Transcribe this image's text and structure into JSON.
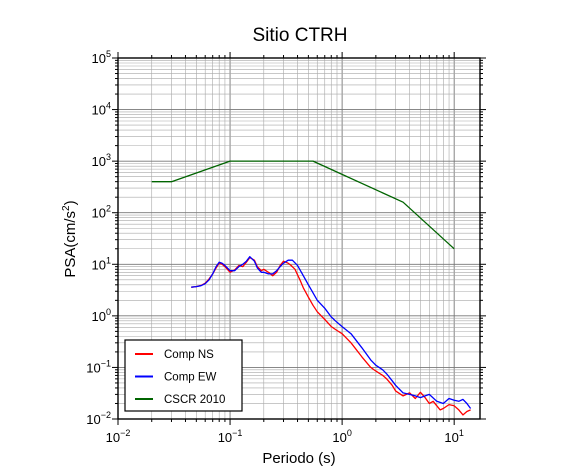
{
  "chart_data": {
    "type": "line",
    "title": "Sitio CTRH",
    "xlabel": "Periodo (s)",
    "ylabel_main": "PSA(cm/s",
    "ylabel_sup": "2",
    "ylabel_end": ")",
    "xscale": "log",
    "yscale": "log",
    "xlim": [
      0.01,
      17
    ],
    "ylim": [
      0.01,
      100000
    ],
    "grid": true,
    "legend_position": "bottom-left",
    "x_ticks": [
      {
        "base": "10",
        "exp": "−2"
      },
      {
        "base": "10",
        "exp": "−1"
      },
      {
        "base": "10",
        "exp": "0"
      },
      {
        "base": "10",
        "exp": "1"
      }
    ],
    "y_ticks": [
      {
        "base": "10",
        "exp": "−2"
      },
      {
        "base": "10",
        "exp": "−1"
      },
      {
        "base": "10",
        "exp": "0"
      },
      {
        "base": "10",
        "exp": "1"
      },
      {
        "base": "10",
        "exp": "2"
      },
      {
        "base": "10",
        "exp": "3"
      },
      {
        "base": "10",
        "exp": "4"
      },
      {
        "base": "10",
        "exp": "5"
      }
    ],
    "series": [
      {
        "name": "Comp NS",
        "color": "#ff0000",
        "x": [
          0.045,
          0.05,
          0.055,
          0.06,
          0.065,
          0.07,
          0.075,
          0.08,
          0.085,
          0.09,
          0.1,
          0.11,
          0.12,
          0.13,
          0.14,
          0.15,
          0.165,
          0.175,
          0.19,
          0.2,
          0.22,
          0.24,
          0.26,
          0.28,
          0.3,
          0.33,
          0.35,
          0.38,
          0.42,
          0.45,
          0.5,
          0.55,
          0.6,
          0.7,
          0.8,
          0.9,
          1.0,
          1.2,
          1.5,
          1.8,
          2.0,
          2.3,
          2.5,
          2.8,
          3.0,
          3.5,
          4.0,
          4.5,
          5.0,
          5.5,
          6.0,
          6.5,
          7.0,
          7.5,
          8.0,
          9.0,
          10.0,
          11.0,
          12.0,
          13.0,
          14.0
        ],
        "y": [
          3.6,
          3.7,
          3.9,
          4.3,
          5.2,
          6.5,
          8.5,
          10.5,
          10.0,
          9.0,
          7.0,
          7.8,
          9.5,
          9.0,
          11.0,
          13.5,
          12.0,
          9.0,
          7.5,
          8.0,
          7.0,
          6.0,
          7.0,
          9.5,
          11.5,
          10.5,
          9.5,
          8.0,
          5.0,
          3.5,
          2.3,
          1.6,
          1.2,
          0.85,
          0.62,
          0.52,
          0.45,
          0.3,
          0.16,
          0.1,
          0.085,
          0.07,
          0.06,
          0.045,
          0.035,
          0.028,
          0.032,
          0.025,
          0.033,
          0.026,
          0.02,
          0.022,
          0.018,
          0.015,
          0.016,
          0.019,
          0.018,
          0.015,
          0.012,
          0.014,
          0.015
        ]
      },
      {
        "name": "Comp EW",
        "color": "#0000ff",
        "x": [
          0.045,
          0.05,
          0.055,
          0.06,
          0.065,
          0.07,
          0.075,
          0.08,
          0.085,
          0.09,
          0.1,
          0.11,
          0.12,
          0.13,
          0.14,
          0.15,
          0.165,
          0.175,
          0.19,
          0.2,
          0.22,
          0.24,
          0.26,
          0.28,
          0.3,
          0.33,
          0.36,
          0.4,
          0.45,
          0.5,
          0.55,
          0.6,
          0.7,
          0.8,
          0.9,
          1.0,
          1.2,
          1.5,
          1.8,
          2.0,
          2.3,
          2.5,
          2.8,
          3.0,
          3.5,
          4.0,
          4.5,
          5.0,
          5.5,
          6.0,
          7.0,
          8.0,
          9.0,
          10.0,
          11.0,
          12.0,
          13.0,
          14.0
        ],
        "y": [
          3.6,
          3.7,
          3.85,
          4.2,
          5.0,
          6.5,
          9.0,
          11.0,
          10.5,
          9.5,
          7.5,
          7.5,
          9.0,
          10.0,
          11.5,
          14.0,
          11.5,
          8.5,
          7.0,
          7.0,
          6.5,
          6.5,
          7.5,
          9.0,
          10.5,
          12.0,
          12.0,
          9.5,
          6.0,
          4.0,
          2.8,
          2.0,
          1.4,
          0.95,
          0.75,
          0.62,
          0.45,
          0.24,
          0.14,
          0.11,
          0.09,
          0.075,
          0.055,
          0.045,
          0.032,
          0.03,
          0.028,
          0.026,
          0.028,
          0.03,
          0.022,
          0.02,
          0.025,
          0.023,
          0.022,
          0.024,
          0.02,
          0.016
        ]
      },
      {
        "name": "CSCR 2010",
        "color": "#006400",
        "x": [
          0.02,
          0.03,
          0.1,
          0.55,
          3.5,
          10.0
        ],
        "y": [
          400,
          400,
          1000,
          1000,
          160,
          20
        ]
      }
    ]
  }
}
